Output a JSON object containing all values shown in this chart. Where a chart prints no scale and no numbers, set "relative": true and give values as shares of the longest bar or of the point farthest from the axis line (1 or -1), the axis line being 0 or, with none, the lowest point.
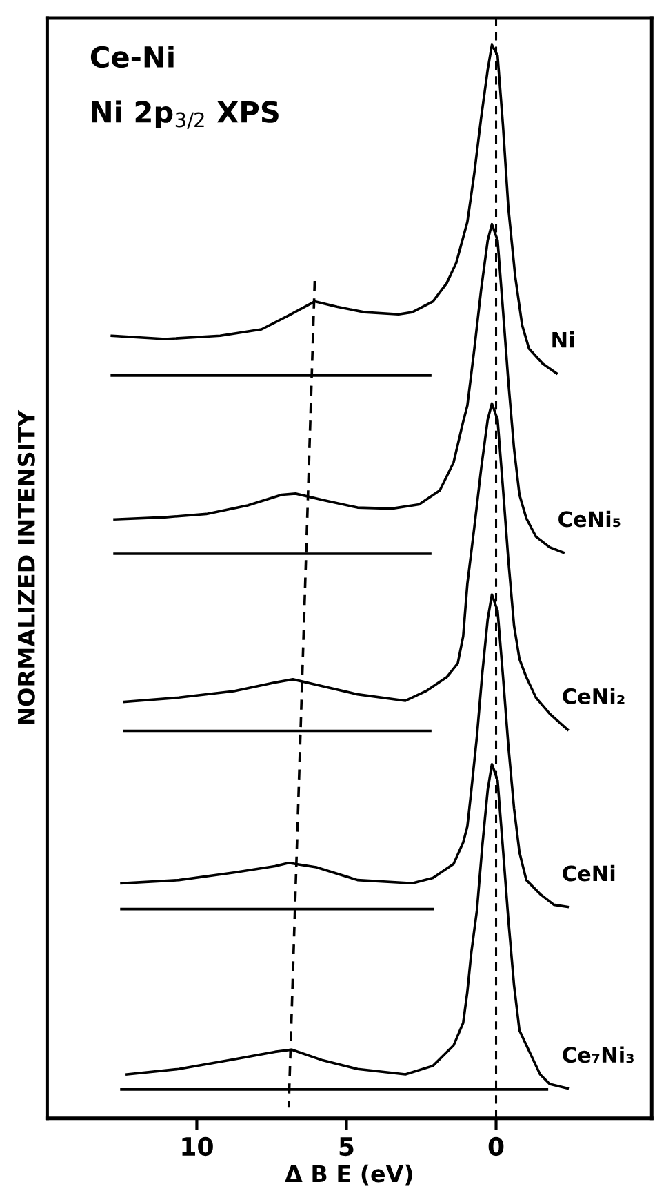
{
  "chart_data": {
    "type": "line",
    "title": "Ce-Ni",
    "subtitle": "Ni 2p$_{3/2}$ XPS",
    "xlabel": "Δ B E (eV)",
    "ylabel": "NORMALIZED INTENSITY",
    "relative": true,
    "xlim": [
      15,
      -5.2
    ],
    "xticks": [
      10,
      5,
      0
    ],
    "grid": false,
    "marker": "none",
    "line_style": "solid",
    "ref_lines": [
      {
        "axis": "x",
        "value": 0,
        "color": "#000000",
        "line_style": "dashed"
      }
    ],
    "series": [
      {
        "name": "Ni",
        "color": "#000000",
        "x": [
          12.84,
          11.06,
          9.22,
          7.84,
          6.93,
          6.06,
          5.32,
          4.4,
          3.26,
          2.8,
          2.11,
          1.65,
          1.33,
          0.96,
          0.73,
          0.5,
          0.28,
          0.14,
          -0.05,
          -0.23,
          -0.41,
          -0.64,
          -0.87,
          -1.1,
          -1.56,
          -2.02
        ],
        "values": [
          0.729,
          0.726,
          0.729,
          0.735,
          0.748,
          0.761,
          0.756,
          0.751,
          0.749,
          0.751,
          0.761,
          0.778,
          0.797,
          0.835,
          0.88,
          0.932,
          0.977,
          1.0,
          0.99,
          0.925,
          0.848,
          0.784,
          0.739,
          0.717,
          0.703,
          0.694
        ]
      },
      {
        "name": "CeNi₅",
        "color": "#000000",
        "x": [
          12.75,
          11.06,
          9.68,
          8.3,
          7.16,
          6.7,
          5.78,
          4.63,
          3.49,
          2.57,
          1.88,
          1.42,
          1.1,
          0.96,
          0.73,
          0.5,
          0.28,
          0.14,
          -0.05,
          -0.23,
          -0.41,
          -0.6,
          -0.78,
          -1.01,
          -1.33,
          -1.79,
          -2.25
        ],
        "values": [
          0.558,
          0.56,
          0.563,
          0.571,
          0.581,
          0.582,
          0.576,
          0.569,
          0.568,
          0.572,
          0.585,
          0.611,
          0.649,
          0.664,
          0.716,
          0.772,
          0.818,
          0.833,
          0.818,
          0.753,
          0.686,
          0.624,
          0.581,
          0.559,
          0.542,
          0.532,
          0.527
        ]
      },
      {
        "name": "CeNi₂",
        "color": "#000000",
        "x": [
          12.43,
          10.6,
          8.76,
          7.39,
          6.79,
          6.01,
          4.63,
          3.03,
          2.34,
          1.65,
          1.28,
          1.1,
          0.96,
          0.73,
          0.5,
          0.28,
          0.14,
          -0.05,
          -0.23,
          -0.41,
          -0.6,
          -0.78,
          -1.01,
          -1.33,
          -1.79,
          -2.39
        ],
        "values": [
          0.388,
          0.392,
          0.398,
          0.406,
          0.409,
          0.404,
          0.395,
          0.389,
          0.398,
          0.411,
          0.424,
          0.449,
          0.498,
          0.55,
          0.605,
          0.651,
          0.666,
          0.651,
          0.587,
          0.52,
          0.459,
          0.428,
          0.411,
          0.392,
          0.377,
          0.362
        ]
      },
      {
        "name": "CeNi",
        "color": "#000000",
        "x": [
          12.52,
          10.6,
          8.76,
          7.39,
          6.93,
          6.01,
          4.63,
          2.8,
          2.11,
          1.42,
          1.1,
          0.96,
          0.83,
          0.64,
          0.46,
          0.28,
          0.14,
          -0.05,
          -0.23,
          -0.41,
          -0.6,
          -0.78,
          -1.01,
          -1.47,
          -1.93,
          -2.39
        ],
        "values": [
          0.219,
          0.222,
          0.229,
          0.235,
          0.238,
          0.234,
          0.222,
          0.219,
          0.224,
          0.237,
          0.257,
          0.272,
          0.305,
          0.356,
          0.415,
          0.465,
          0.488,
          0.473,
          0.412,
          0.347,
          0.289,
          0.248,
          0.222,
          0.209,
          0.199,
          0.197
        ]
      },
      {
        "name": "Ce₇Ni₃",
        "color": "#000000",
        "x": [
          12.34,
          10.6,
          8.76,
          7.39,
          6.83,
          5.78,
          4.63,
          3.03,
          2.11,
          1.42,
          1.1,
          0.96,
          0.83,
          0.64,
          0.46,
          0.28,
          0.14,
          -0.05,
          -0.23,
          -0.41,
          -0.6,
          -0.78,
          -1.47,
          -1.79,
          -2.39
        ],
        "values": [
          0.041,
          0.046,
          0.055,
          0.062,
          0.064,
          0.054,
          0.046,
          0.041,
          0.049,
          0.068,
          0.089,
          0.118,
          0.154,
          0.194,
          0.254,
          0.306,
          0.33,
          0.315,
          0.251,
          0.185,
          0.124,
          0.082,
          0.041,
          0.032,
          0.028
        ]
      },
      {
        "color": "#000000",
        "x": [
          12.84,
          2.2
        ],
        "values": [
          0.692,
          0.692
        ]
      },
      {
        "color": "#000000",
        "x": [
          12.75,
          2.2
        ],
        "values": [
          0.526,
          0.526
        ]
      },
      {
        "color": "#000000",
        "x": [
          12.43,
          2.2
        ],
        "values": [
          0.361,
          0.361
        ]
      },
      {
        "color": "#000000",
        "x": [
          12.52,
          2.11
        ],
        "values": [
          0.195,
          0.195
        ]
      },
      {
        "color": "#000000",
        "x": [
          12.52,
          -1.7
        ],
        "values": [
          0.027,
          0.027
        ]
      },
      {
        "color": "#000000",
        "x": [
          6.06,
          6.93
        ],
        "values": [
          0.78,
          0.01
        ],
        "line_style": "dashed"
      }
    ]
  }
}
